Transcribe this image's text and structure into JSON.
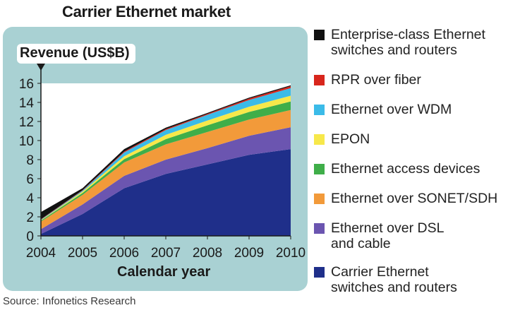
{
  "title": "Carrier Ethernet market",
  "source": "Source:  Infonetics Research",
  "colors": {
    "panel_background": "#a9d1d3",
    "plot_background": "#ffffff"
  },
  "chart_data": {
    "type": "area",
    "stacked": true,
    "title": "Carrier Ethernet market",
    "ylabel": "Revenue (US$B)",
    "xlabel": "Calendar year",
    "x": [
      "2004",
      "2005",
      "2006",
      "2007",
      "2008",
      "2009",
      "2010"
    ],
    "ylim": [
      0,
      16
    ],
    "yticks": [
      "0",
      "2",
      "4",
      "6",
      "8",
      "10",
      "12",
      "14",
      "16"
    ],
    "grid": false,
    "legend_position": "right",
    "series": [
      {
        "name": "Carrier Ethernet switches and routers",
        "color": "#1f2f8a",
        "values": [
          0.2,
          2.3,
          5.0,
          6.5,
          7.5,
          8.5,
          9.1
        ]
      },
      {
        "name": "Ethernet over DSL and cable",
        "color": "#6b55b0",
        "values": [
          0.5,
          1.0,
          1.3,
          1.5,
          1.7,
          2.0,
          2.3
        ]
      },
      {
        "name": "Ethernet over SONET/SDH",
        "color": "#f29a3a",
        "values": [
          0.8,
          1.0,
          1.4,
          1.6,
          1.7,
          1.7,
          1.8
        ]
      },
      {
        "name": "Ethernet access devices",
        "color": "#3fae49",
        "values": [
          0.1,
          0.2,
          0.35,
          0.55,
          0.7,
          0.8,
          0.9
        ]
      },
      {
        "name": "EPON",
        "color": "#f7e84a",
        "values": [
          0.05,
          0.15,
          0.3,
          0.45,
          0.5,
          0.55,
          0.6
        ]
      },
      {
        "name": "Ethernet over WDM",
        "color": "#3bbbe8",
        "values": [
          0.05,
          0.1,
          0.4,
          0.5,
          0.6,
          0.7,
          0.8
        ]
      },
      {
        "name": "RPR over fiber",
        "color": "#d8261c",
        "values": [
          0.05,
          0.05,
          0.1,
          0.1,
          0.1,
          0.15,
          0.2
        ]
      },
      {
        "name": "Enterprise-class Ethernet switches and routers",
        "color": "#111111",
        "values": [
          0.75,
          0.2,
          0.25,
          0.15,
          0.1,
          0.1,
          0.1
        ]
      }
    ]
  },
  "legend": [
    {
      "line1": "Enterprise-class Ethernet",
      "line2": "switches and routers",
      "color": "#111111"
    },
    {
      "line1": "RPR over fiber",
      "line2": "",
      "color": "#d8261c"
    },
    {
      "line1": "Ethernet over WDM",
      "line2": "",
      "color": "#3bbbe8"
    },
    {
      "line1": "EPON",
      "line2": "",
      "color": "#f7e84a"
    },
    {
      "line1": "Ethernet access devices",
      "line2": "",
      "color": "#3fae49"
    },
    {
      "line1": "Ethernet over SONET/SDH",
      "line2": "",
      "color": "#f29a3a"
    },
    {
      "line1": "Ethernet over DSL",
      "line2": "and cable",
      "color": "#6b55b0"
    },
    {
      "line1": "Carrier Ethernet",
      "line2": "switches and routers",
      "color": "#1f2f8a"
    }
  ]
}
